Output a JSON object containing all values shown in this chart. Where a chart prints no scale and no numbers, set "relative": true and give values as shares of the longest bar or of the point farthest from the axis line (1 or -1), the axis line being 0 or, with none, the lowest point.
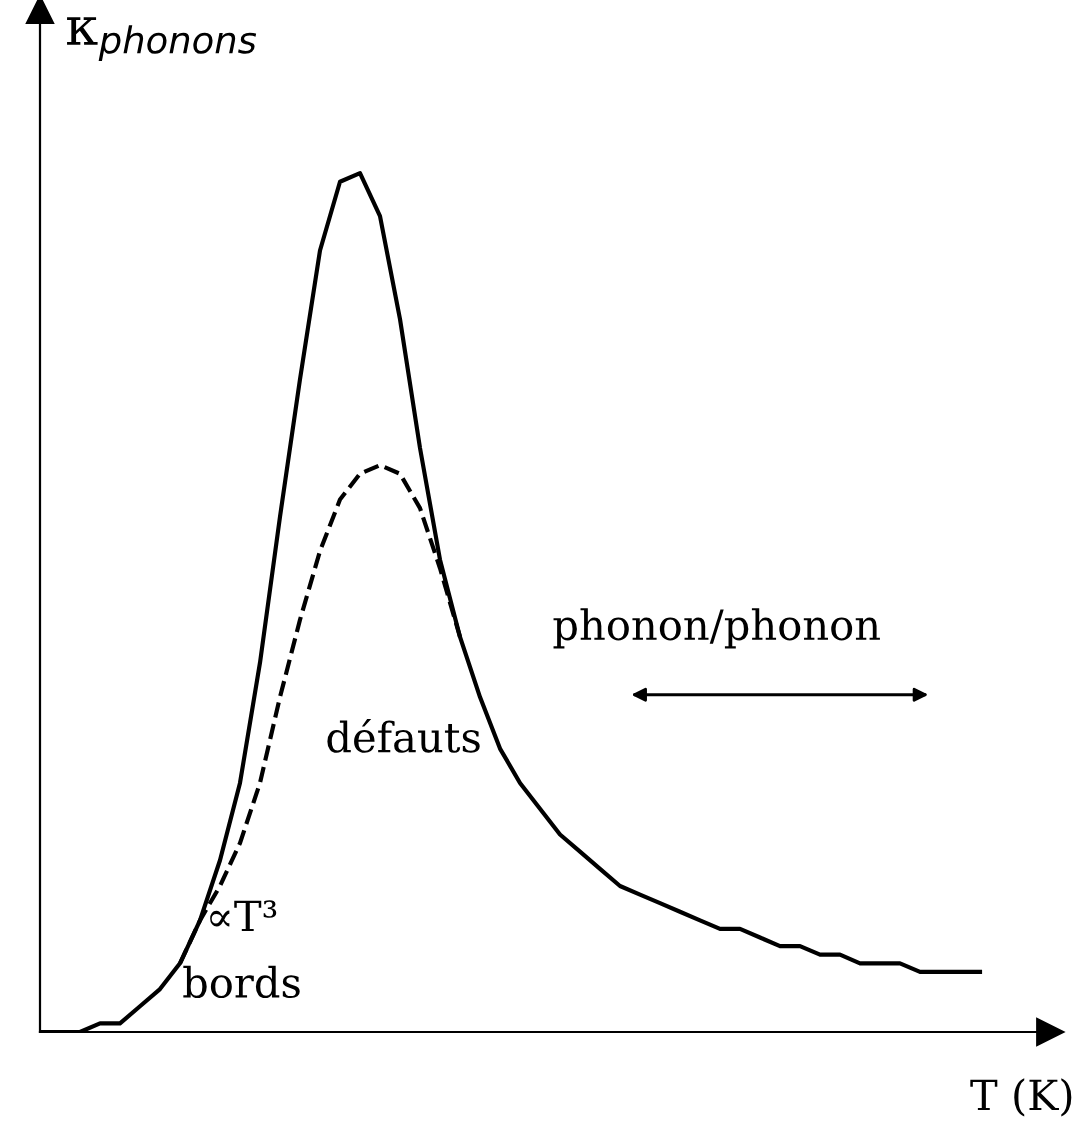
{
  "chart_data": {
    "type": "line",
    "relative": true,
    "xlabel": "T (K)",
    "ylabel": "κ$_{phonons}$",
    "categories": [
      null,
      null,
      null,
      null,
      null,
      null,
      null,
      null,
      null,
      null,
      null,
      null,
      null,
      null,
      null,
      null,
      null,
      null,
      null,
      null,
      null,
      null,
      null,
      null,
      null,
      null,
      null,
      null,
      null,
      null,
      null,
      null,
      null,
      null,
      null,
      null,
      null,
      null,
      null,
      null,
      null,
      null,
      null,
      null,
      null,
      null,
      null,
      null
    ],
    "series": [
      {
        "color": "#000000",
        "line_style": "solid",
        "values": [
          0,
          0,
          0,
          0.01,
          0.01,
          0.03,
          0.05,
          0.08,
          0.13,
          0.2,
          0.29,
          0.43,
          0.6,
          0.76,
          0.91,
          0.99,
          1.0,
          0.95,
          0.83,
          0.68,
          0.55,
          0.46,
          0.39,
          0.33,
          0.29,
          0.26,
          0.23,
          0.21,
          0.19,
          0.17,
          0.16,
          0.15,
          0.14,
          0.13,
          0.12,
          0.12,
          0.11,
          0.1,
          0.1,
          0.09,
          0.09,
          0.08,
          0.08,
          0.08,
          0.07,
          0.07,
          0.07,
          0.07
        ]
      },
      {
        "color": "#000000",
        "line_style": "dashed",
        "values": [
          null,
          null,
          null,
          null,
          null,
          null,
          null,
          0.08,
          0.13,
          0.17,
          0.22,
          0.29,
          0.39,
          0.48,
          0.56,
          0.62,
          0.65,
          0.66,
          0.65,
          0.61,
          0.54,
          0.46,
          null,
          null,
          null,
          null,
          null,
          null,
          null,
          null,
          null,
          null,
          null,
          null,
          null,
          null,
          null,
          null,
          null,
          null,
          null,
          null,
          null,
          null,
          null,
          null,
          null,
          null
        ]
      }
    ],
    "annotations": [
      "défauts",
      "phonon/phonon",
      "∝T³",
      "bords"
    ]
  }
}
